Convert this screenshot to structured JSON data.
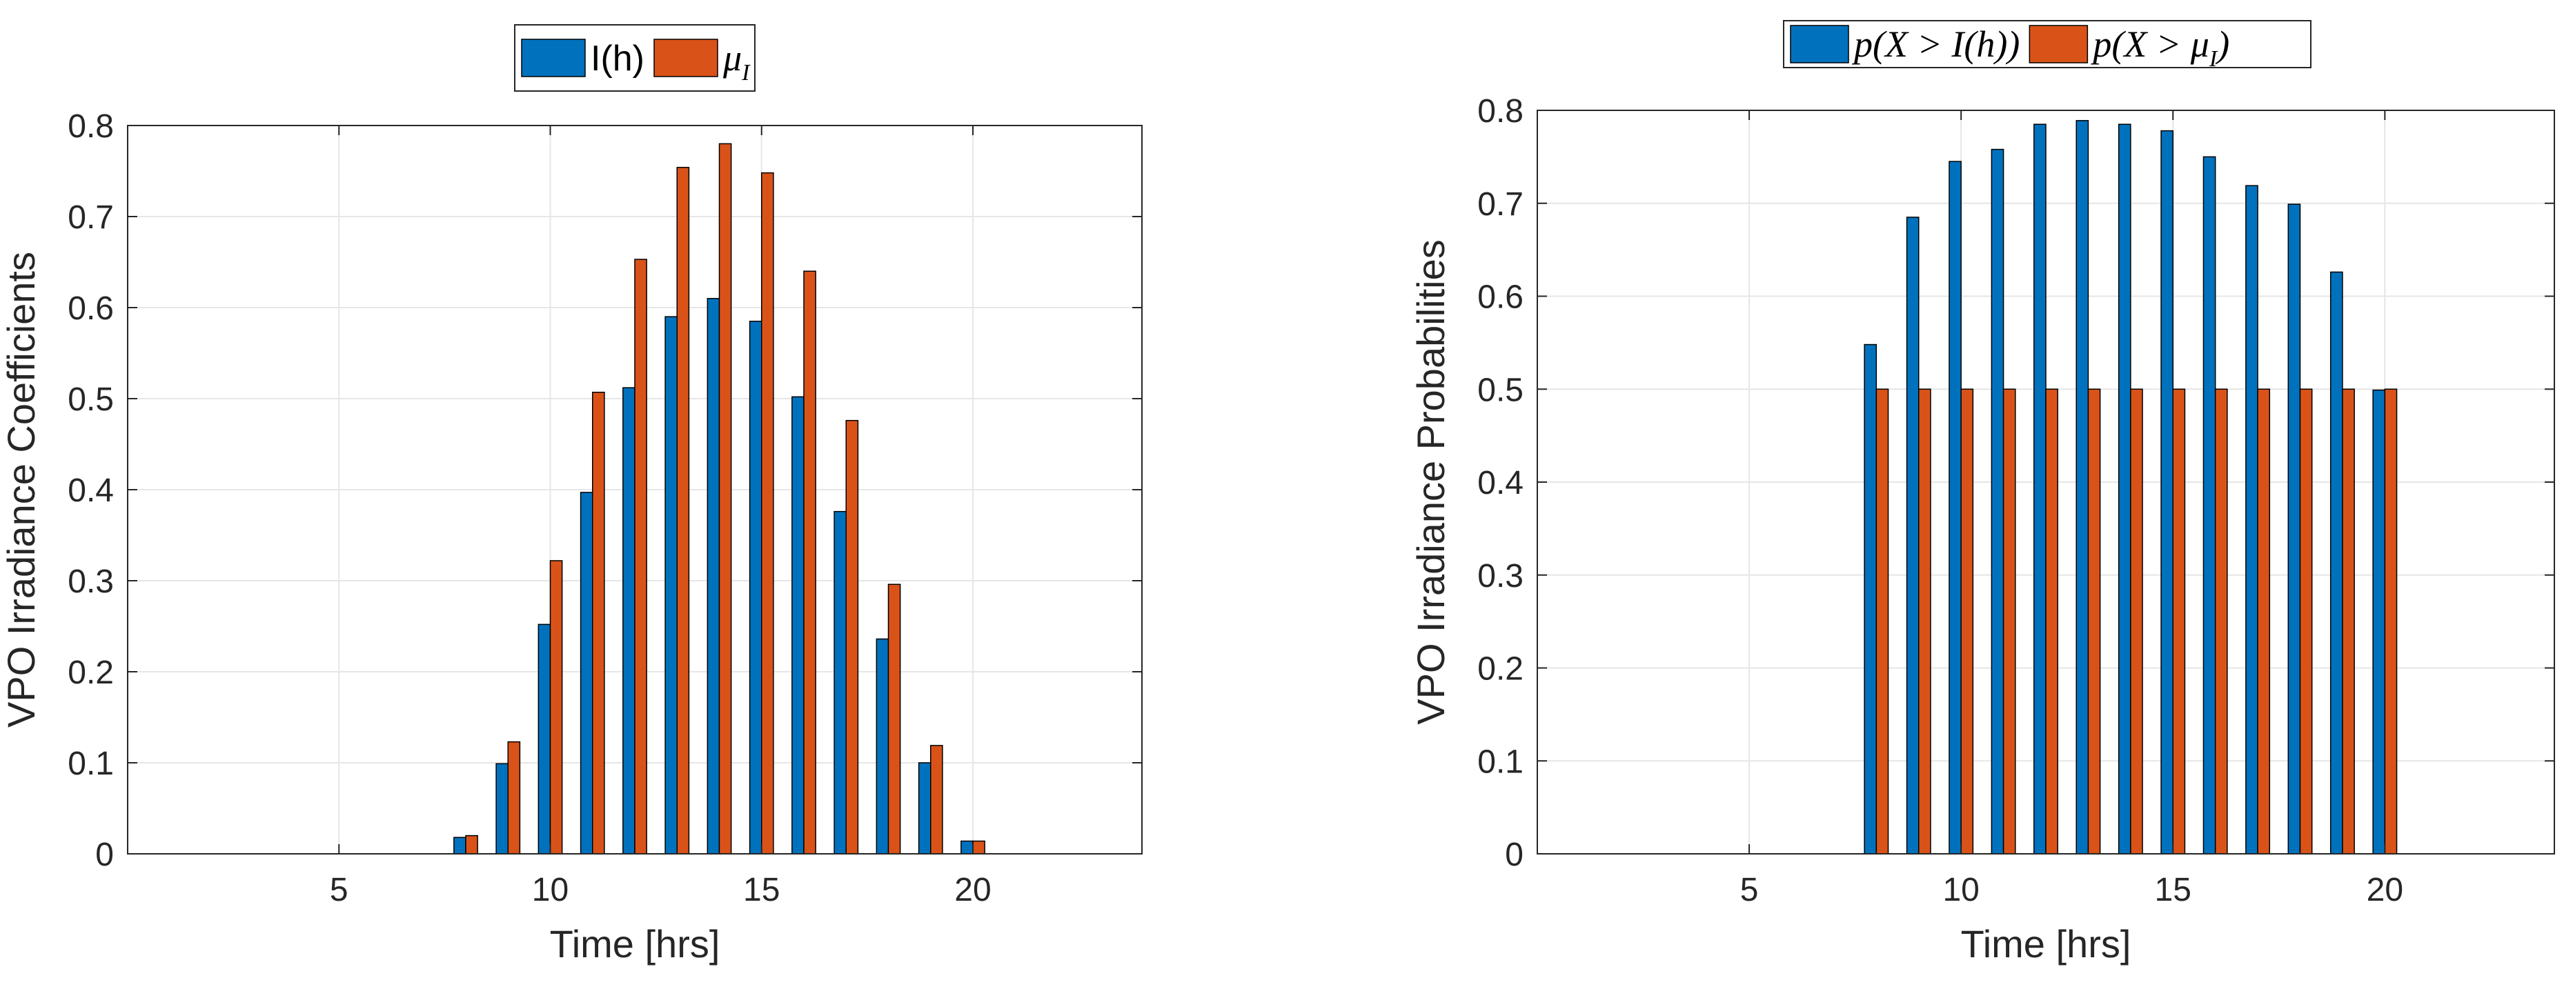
{
  "charts": [
    {
      "id": "left",
      "type": "bar",
      "xlabel": "Time [hrs]",
      "ylabel": "VPO Irradiance Coefficients",
      "xlim": [
        0,
        24
      ],
      "ylim": [
        0,
        0.8
      ],
      "xticks": [
        5,
        10,
        15,
        20
      ],
      "yticks": [
        0,
        0.1,
        0.2,
        0.3,
        0.4,
        0.5,
        0.6,
        0.7,
        0.8
      ],
      "ytick_labels": [
        "0",
        "0.1",
        "0.2",
        "0.3",
        "0.4",
        "0.5",
        "0.6",
        "0.7",
        "0.8"
      ],
      "grid": true,
      "legend_position": "top-center-outside",
      "legend_math": false,
      "x": [
        1,
        2,
        3,
        4,
        5,
        6,
        7,
        8,
        9,
        10,
        11,
        12,
        13,
        14,
        15,
        16,
        17,
        18,
        19,
        20,
        21,
        22,
        23
      ],
      "series": [
        {
          "name": "I(h)",
          "name_base": "I(h)",
          "name_sub": "",
          "color": "#0072BD",
          "values": [
            0,
            0,
            0,
            0,
            0,
            0,
            0,
            0.018,
            0.099,
            0.252,
            0.397,
            0.512,
            0.59,
            0.61,
            0.585,
            0.502,
            0.376,
            0.236,
            0.1,
            0.014,
            0,
            0,
            0
          ]
        },
        {
          "name": "μI",
          "name_base": "μ",
          "name_sub": "I",
          "color": "#D95319",
          "values": [
            0,
            0,
            0,
            0,
            0,
            0,
            0,
            0.02,
            0.123,
            0.322,
            0.507,
            0.653,
            0.754,
            0.78,
            0.748,
            0.64,
            0.476,
            0.296,
            0.119,
            0.014,
            0,
            0,
            0
          ]
        }
      ]
    },
    {
      "id": "right",
      "type": "bar",
      "xlabel": "Time [hrs]",
      "ylabel": "VPO Irradiance Probabilities",
      "xlim": [
        0,
        24
      ],
      "ylim": [
        0,
        0.8
      ],
      "xticks": [
        5,
        10,
        15,
        20
      ],
      "yticks": [
        0,
        0.1,
        0.2,
        0.3,
        0.4,
        0.5,
        0.6,
        0.7,
        0.8
      ],
      "ytick_labels": [
        "0",
        "0.1",
        "0.2",
        "0.3",
        "0.4",
        "0.5",
        "0.6",
        "0.7",
        "0.8"
      ],
      "grid": true,
      "legend_position": "top-center-outside",
      "legend_math": true,
      "x": [
        1,
        2,
        3,
        4,
        5,
        6,
        7,
        8,
        9,
        10,
        11,
        12,
        13,
        14,
        15,
        16,
        17,
        18,
        19,
        20,
        21,
        22,
        23
      ],
      "series": [
        {
          "name": "p(X > I(h))",
          "name_base": "p(X > I(h))",
          "name_sub": "",
          "color": "#0072BD",
          "values": [
            0,
            0,
            0,
            0,
            0,
            0,
            0,
            0.548,
            0.685,
            0.745,
            0.758,
            0.785,
            0.789,
            0.785,
            0.778,
            0.75,
            0.719,
            0.699,
            0.626,
            0.499,
            0,
            0,
            0
          ]
        },
        {
          "name": "p(X > μI)",
          "name_base": "p(X > μ",
          "name_sub": "I",
          "name_tail": ")",
          "color": "#D95319",
          "values": [
            0,
            0,
            0,
            0,
            0,
            0,
            0,
            0.5,
            0.5,
            0.5,
            0.5,
            0.5,
            0.5,
            0.5,
            0.5,
            0.5,
            0.5,
            0.5,
            0.5,
            0.5,
            0,
            0,
            0
          ]
        }
      ]
    }
  ]
}
